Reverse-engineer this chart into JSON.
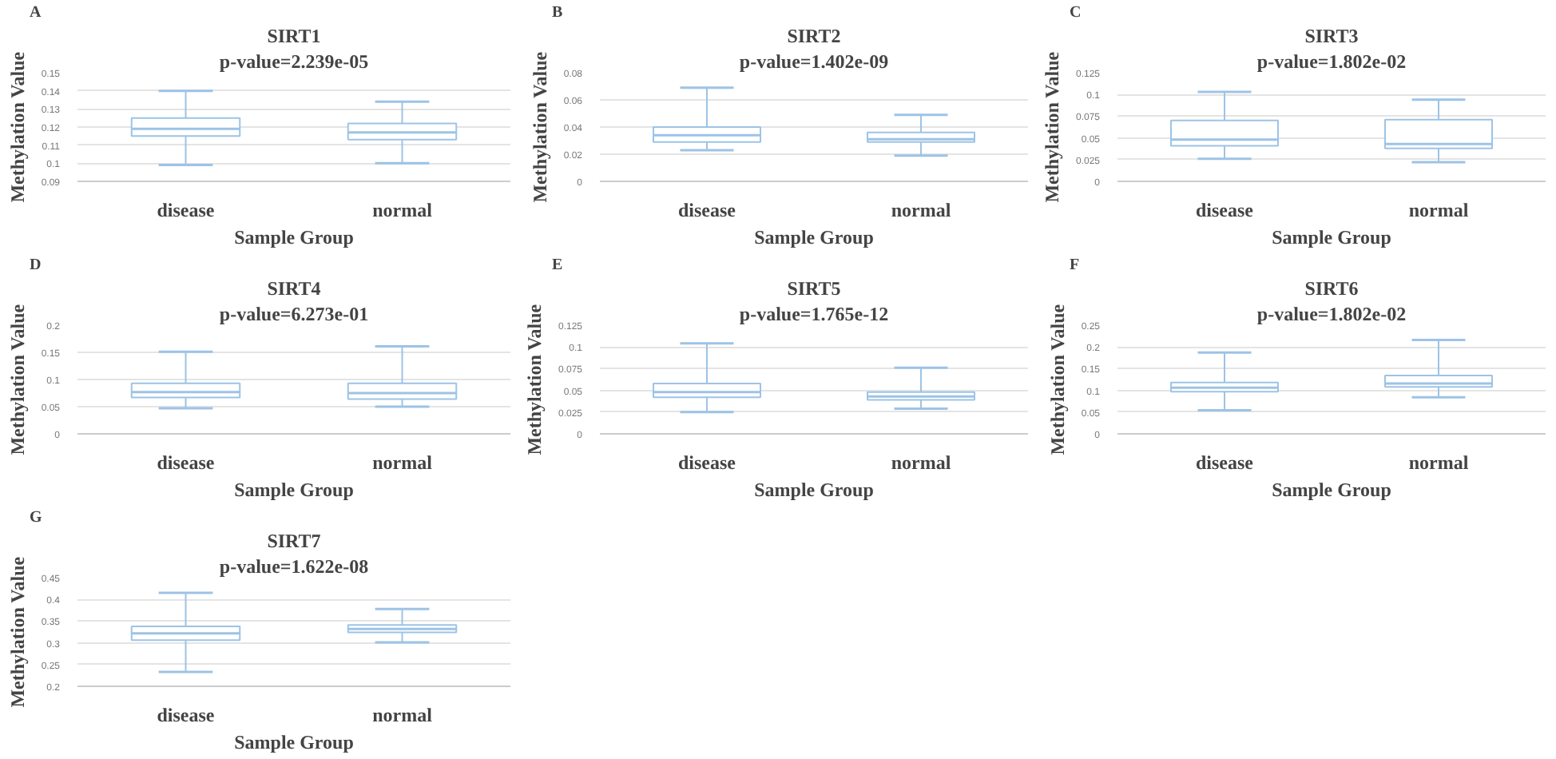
{
  "chart_data": [
    {
      "type": "box",
      "title": "SIRT1",
      "subtitle": "p-value=2.239e-05",
      "xlabel": "Sample Group",
      "ylabel": "Methylation Value",
      "annotations": [
        "A"
      ],
      "categories": [
        "disease",
        "normal"
      ],
      "ylim": [
        0.09,
        0.15
      ],
      "yticks": [
        0.09,
        0.1,
        0.11,
        0.12,
        0.13,
        0.14,
        0.15
      ],
      "grid": "y",
      "series": [
        {
          "color": "#9dc3e6",
          "boxes": [
            {
              "low": 0.099,
              "q1": 0.115,
              "median": 0.119,
              "q3": 0.125,
              "high": 0.14
            },
            {
              "low": 0.1,
              "q1": 0.113,
              "median": 0.117,
              "q3": 0.122,
              "high": 0.134
            }
          ]
        }
      ]
    },
    {
      "type": "box",
      "title": "SIRT2",
      "subtitle": "p-value=1.402e-09",
      "xlabel": "Sample Group",
      "ylabel": "Methylation Value",
      "annotations": [
        "B"
      ],
      "categories": [
        "disease",
        "normal"
      ],
      "ylim": [
        0,
        0.08
      ],
      "yticks": [
        0,
        0.02,
        0.04,
        0.06,
        0.08
      ],
      "grid": "y",
      "series": [
        {
          "color": "#9dc3e6",
          "boxes": [
            {
              "low": 0.023,
              "q1": 0.029,
              "median": 0.034,
              "q3": 0.04,
              "high": 0.069
            },
            {
              "low": 0.019,
              "q1": 0.029,
              "median": 0.031,
              "q3": 0.036,
              "high": 0.049
            }
          ]
        }
      ]
    },
    {
      "type": "box",
      "title": "SIRT3",
      "subtitle": "p-value=1.802e-02",
      "xlabel": "Sample Group",
      "ylabel": "Methylation Value",
      "annotations": [
        "C"
      ],
      "categories": [
        "disease",
        "normal"
      ],
      "ylim": [
        0,
        0.125
      ],
      "yticks": [
        0,
        0.025,
        0.05,
        0.075,
        0.1,
        0.125
      ],
      "grid": "y",
      "series": [
        {
          "color": "#9dc3e6",
          "boxes": [
            {
              "low": 0.026,
              "q1": 0.041,
              "median": 0.048,
              "q3": 0.07,
              "high": 0.103
            },
            {
              "low": 0.022,
              "q1": 0.038,
              "median": 0.043,
              "q3": 0.071,
              "high": 0.094
            }
          ]
        }
      ]
    },
    {
      "type": "box",
      "title": "SIRT4",
      "subtitle": "p-value=6.273e-01",
      "xlabel": "Sample Group",
      "ylabel": "Methylation Value",
      "annotations": [
        "D"
      ],
      "categories": [
        "disease",
        "normal"
      ],
      "ylim": [
        0,
        0.2
      ],
      "yticks": [
        0,
        0.05,
        0.1,
        0.15,
        0.2
      ],
      "grid": "y",
      "series": [
        {
          "color": "#9dc3e6",
          "boxes": [
            {
              "low": 0.047,
              "q1": 0.067,
              "median": 0.077,
              "q3": 0.093,
              "high": 0.151
            },
            {
              "low": 0.05,
              "q1": 0.064,
              "median": 0.075,
              "q3": 0.093,
              "high": 0.161
            }
          ]
        }
      ]
    },
    {
      "type": "box",
      "title": "SIRT5",
      "subtitle": "p-value=1.765e-12",
      "xlabel": "Sample Group",
      "ylabel": "Methylation Value",
      "annotations": [
        "E"
      ],
      "categories": [
        "disease",
        "normal"
      ],
      "ylim": [
        0,
        0.125
      ],
      "yticks": [
        0,
        0.025,
        0.05,
        0.075,
        0.1,
        0.125
      ],
      "grid": "y",
      "series": [
        {
          "color": "#9dc3e6",
          "boxes": [
            {
              "low": 0.025,
              "q1": 0.042,
              "median": 0.048,
              "q3": 0.058,
              "high": 0.104
            },
            {
              "low": 0.029,
              "q1": 0.039,
              "median": 0.043,
              "q3": 0.048,
              "high": 0.076
            }
          ]
        }
      ]
    },
    {
      "type": "box",
      "title": "SIRT6",
      "subtitle": "p-value=1.802e-02",
      "xlabel": "Sample Group",
      "ylabel": "Methylation Value",
      "annotations": [
        "F"
      ],
      "categories": [
        "disease",
        "normal"
      ],
      "ylim": [
        0,
        0.25
      ],
      "yticks": [
        0,
        0.05,
        0.1,
        0.15,
        0.2,
        0.25
      ],
      "grid": "y",
      "series": [
        {
          "color": "#9dc3e6",
          "boxes": [
            {
              "low": 0.054,
              "q1": 0.097,
              "median": 0.106,
              "q3": 0.118,
              "high": 0.187
            },
            {
              "low": 0.084,
              "q1": 0.108,
              "median": 0.116,
              "q3": 0.134,
              "high": 0.216
            }
          ]
        }
      ]
    },
    {
      "type": "box",
      "title": "SIRT7",
      "subtitle": "p-value=1.622e-08",
      "xlabel": "Sample Group",
      "ylabel": "Methylation Value",
      "annotations": [
        "G"
      ],
      "categories": [
        "disease",
        "normal"
      ],
      "ylim": [
        0.2,
        0.45
      ],
      "yticks": [
        0.2,
        0.25,
        0.3,
        0.35,
        0.4,
        0.45
      ],
      "grid": "y",
      "series": [
        {
          "color": "#9dc3e6",
          "boxes": [
            {
              "low": 0.233,
              "q1": 0.306,
              "median": 0.322,
              "q3": 0.338,
              "high": 0.415
            },
            {
              "low": 0.301,
              "q1": 0.324,
              "median": 0.332,
              "q3": 0.341,
              "high": 0.378
            }
          ]
        }
      ]
    }
  ]
}
